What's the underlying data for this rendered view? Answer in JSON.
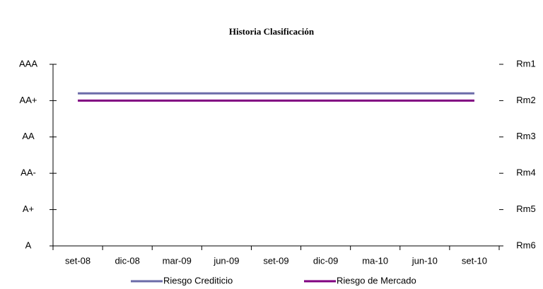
{
  "chart_data": {
    "type": "line",
    "title": "Historia Clasificación",
    "categories": [
      "set-08",
      "dic-08",
      "mar-09",
      "jun-09",
      "set-09",
      "dic-09",
      "ma-10",
      "jun-10",
      "set-10"
    ],
    "series": [
      {
        "name": "Riesgo Crediticio",
        "color": "#6b6ba8",
        "values": [
          4.2,
          4.2,
          4.2,
          4.2,
          4.2,
          4.2,
          4.2,
          4.2,
          4.2
        ]
      },
      {
        "name": "Riesgo de Mercado",
        "color": "#800080",
        "values": [
          4,
          4,
          4,
          4,
          4,
          4,
          4,
          4,
          4
        ]
      }
    ],
    "ylim": [
      0,
      5
    ],
    "yticks": [
      {
        "value": 0,
        "label": "A"
      },
      {
        "value": 1,
        "label": "A+"
      },
      {
        "value": 2,
        "label": "AA-"
      },
      {
        "value": 3,
        "label": "AA"
      },
      {
        "value": 4,
        "label": "AA+"
      },
      {
        "value": 5,
        "label": "AAA"
      }
    ],
    "y2lim": [
      0,
      5
    ],
    "y2ticks": [
      {
        "value": 0,
        "label": "Rm6"
      },
      {
        "value": 1,
        "label": "Rm5"
      },
      {
        "value": 2,
        "label": "Rm4"
      },
      {
        "value": 3,
        "label": "Rm3"
      },
      {
        "value": 4,
        "label": "Rm2"
      },
      {
        "value": 5,
        "label": "Rm1"
      }
    ],
    "legend": "bottom"
  }
}
